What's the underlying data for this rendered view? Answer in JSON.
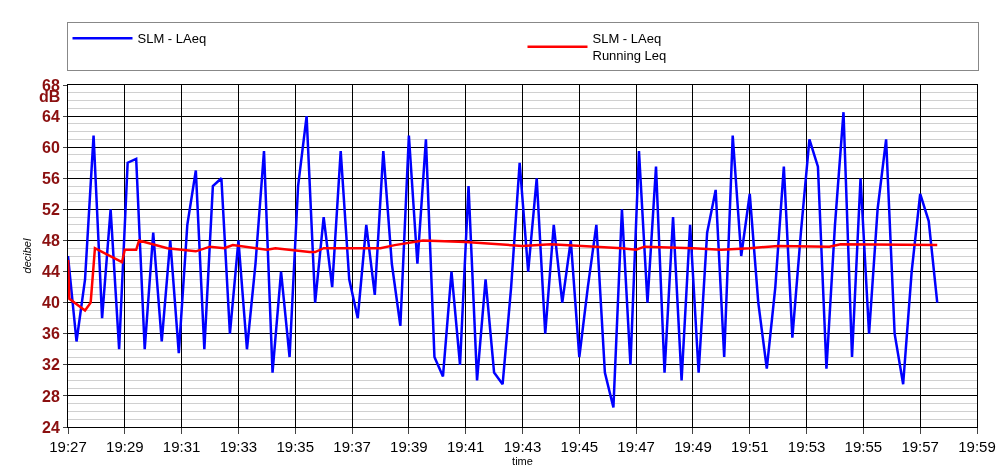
{
  "chart_data": {
    "type": "line",
    "xlabel": "time",
    "ylabel": "decibel",
    "annotations": [
      "dB"
    ],
    "xlim": [
      19.45,
      19.98333
    ],
    "xticks": [
      {
        "value": 19.45,
        "label": "19:27"
      },
      {
        "value": 19.48333,
        "label": "19:29"
      },
      {
        "value": 19.51667,
        "label": "19:31"
      },
      {
        "value": 19.55,
        "label": "19:33"
      },
      {
        "value": 19.58333,
        "label": "19:35"
      },
      {
        "value": 19.61667,
        "label": "19:37"
      },
      {
        "value": 19.65,
        "label": "19:39"
      },
      {
        "value": 19.68333,
        "label": "19:41"
      },
      {
        "value": 19.71667,
        "label": "19:43"
      },
      {
        "value": 19.75,
        "label": "19:45"
      },
      {
        "value": 19.78333,
        "label": "19:47"
      },
      {
        "value": 19.81667,
        "label": "19:49"
      },
      {
        "value": 19.85,
        "label": "19:51"
      },
      {
        "value": 19.88333,
        "label": "19:53"
      },
      {
        "value": 19.91667,
        "label": "19:55"
      },
      {
        "value": 19.95,
        "label": "19:57"
      },
      {
        "value": 19.98333,
        "label": "19:59"
      }
    ],
    "ylim": [
      24,
      68
    ],
    "yticks": [
      24,
      28,
      32,
      36,
      40,
      44,
      48,
      52,
      56,
      60,
      64,
      68
    ],
    "grid": true,
    "legend": "top",
    "marker": "none",
    "line_style": "solid",
    "series": [
      {
        "name": "SLM - LAeq",
        "color": "#0000ff",
        "x": [
          19.45,
          19.455,
          19.46,
          19.465,
          19.47,
          19.475,
          19.48,
          19.485,
          19.49,
          19.495,
          19.5,
          19.505,
          19.51,
          19.515,
          19.52,
          19.525,
          19.53,
          19.535,
          19.54,
          19.545,
          19.55,
          19.555,
          19.56,
          19.565,
          19.57,
          19.575,
          19.58,
          19.585,
          19.59,
          19.595,
          19.6,
          19.605,
          19.61,
          19.615,
          19.62,
          19.625,
          19.63,
          19.635,
          19.64,
          19.645,
          19.65,
          19.655,
          19.66,
          19.665,
          19.67,
          19.675,
          19.68,
          19.685,
          19.69,
          19.695,
          19.7,
          19.705,
          19.71,
          19.715,
          19.72,
          19.725,
          19.73,
          19.735,
          19.74,
          19.745,
          19.75,
          19.755,
          19.76,
          19.765,
          19.77,
          19.775,
          19.78,
          19.785,
          19.79,
          19.795,
          19.8,
          19.805,
          19.81,
          19.815,
          19.82,
          19.825,
          19.83,
          19.835,
          19.84,
          19.845,
          19.85,
          19.855,
          19.86,
          19.865,
          19.87,
          19.875,
          19.88,
          19.885,
          19.89,
          19.895,
          19.9,
          19.905,
          19.91,
          19.915,
          19.92,
          19.925,
          19.93,
          19.935,
          19.94,
          19.945,
          19.95,
          19.955,
          19.96
        ],
        "values": [
          46,
          35,
          43,
          61.5,
          38,
          52,
          34,
          58,
          58.5,
          34,
          49,
          35,
          48,
          33.5,
          50,
          57,
          34,
          55,
          56,
          36,
          48,
          34,
          45,
          59.5,
          31,
          44,
          33,
          55,
          64,
          40,
          51,
          42,
          59.5,
          43,
          38,
          50,
          41,
          59.5,
          45,
          37,
          61.5,
          45,
          61,
          33,
          30.5,
          44,
          32,
          55,
          30,
          43,
          31,
          29.5,
          42,
          58,
          44,
          56,
          36,
          50,
          40,
          48,
          33,
          42,
          50,
          31,
          26.5,
          52,
          32,
          59.5,
          40,
          57.5,
          31,
          51,
          30,
          50,
          31,
          49,
          54.5,
          33,
          61.5,
          46,
          54,
          40,
          31.5,
          42,
          57.5,
          35.5,
          49,
          61,
          57.5,
          31.5,
          50,
          64.5,
          33,
          56,
          36,
          52,
          61,
          36,
          29.5,
          44,
          54,
          50.5,
          40
        ]
      },
      {
        "name": "SLM - LAeq\nRunning Leq",
        "color": "#ff0000",
        "x": [
          19.45,
          19.4508,
          19.46,
          19.4633,
          19.4658,
          19.4817,
          19.4833,
          19.49,
          19.4917,
          19.5083,
          19.525,
          19.5333,
          19.5417,
          19.5467,
          19.5667,
          19.5717,
          19.5917,
          19.595,
          19.6,
          19.6333,
          19.6417,
          19.6583,
          19.6833,
          19.7167,
          19.7333,
          19.775,
          19.7833,
          19.7883,
          19.8167,
          19.8333,
          19.85,
          19.8667,
          19.8967,
          19.9033,
          19.96
        ],
        "values": [
          45.5,
          40.5,
          39,
          40,
          47,
          45.2,
          46.8,
          46.8,
          48,
          47,
          46.6,
          47.2,
          47,
          47.4,
          46.8,
          47,
          46.5,
          46.5,
          47,
          47,
          47.4,
          48,
          47.8,
          47.3,
          47.5,
          47,
          46.8,
          47.2,
          47,
          46.8,
          47,
          47.3,
          47.2,
          47.5,
          47.4
        ]
      }
    ]
  }
}
